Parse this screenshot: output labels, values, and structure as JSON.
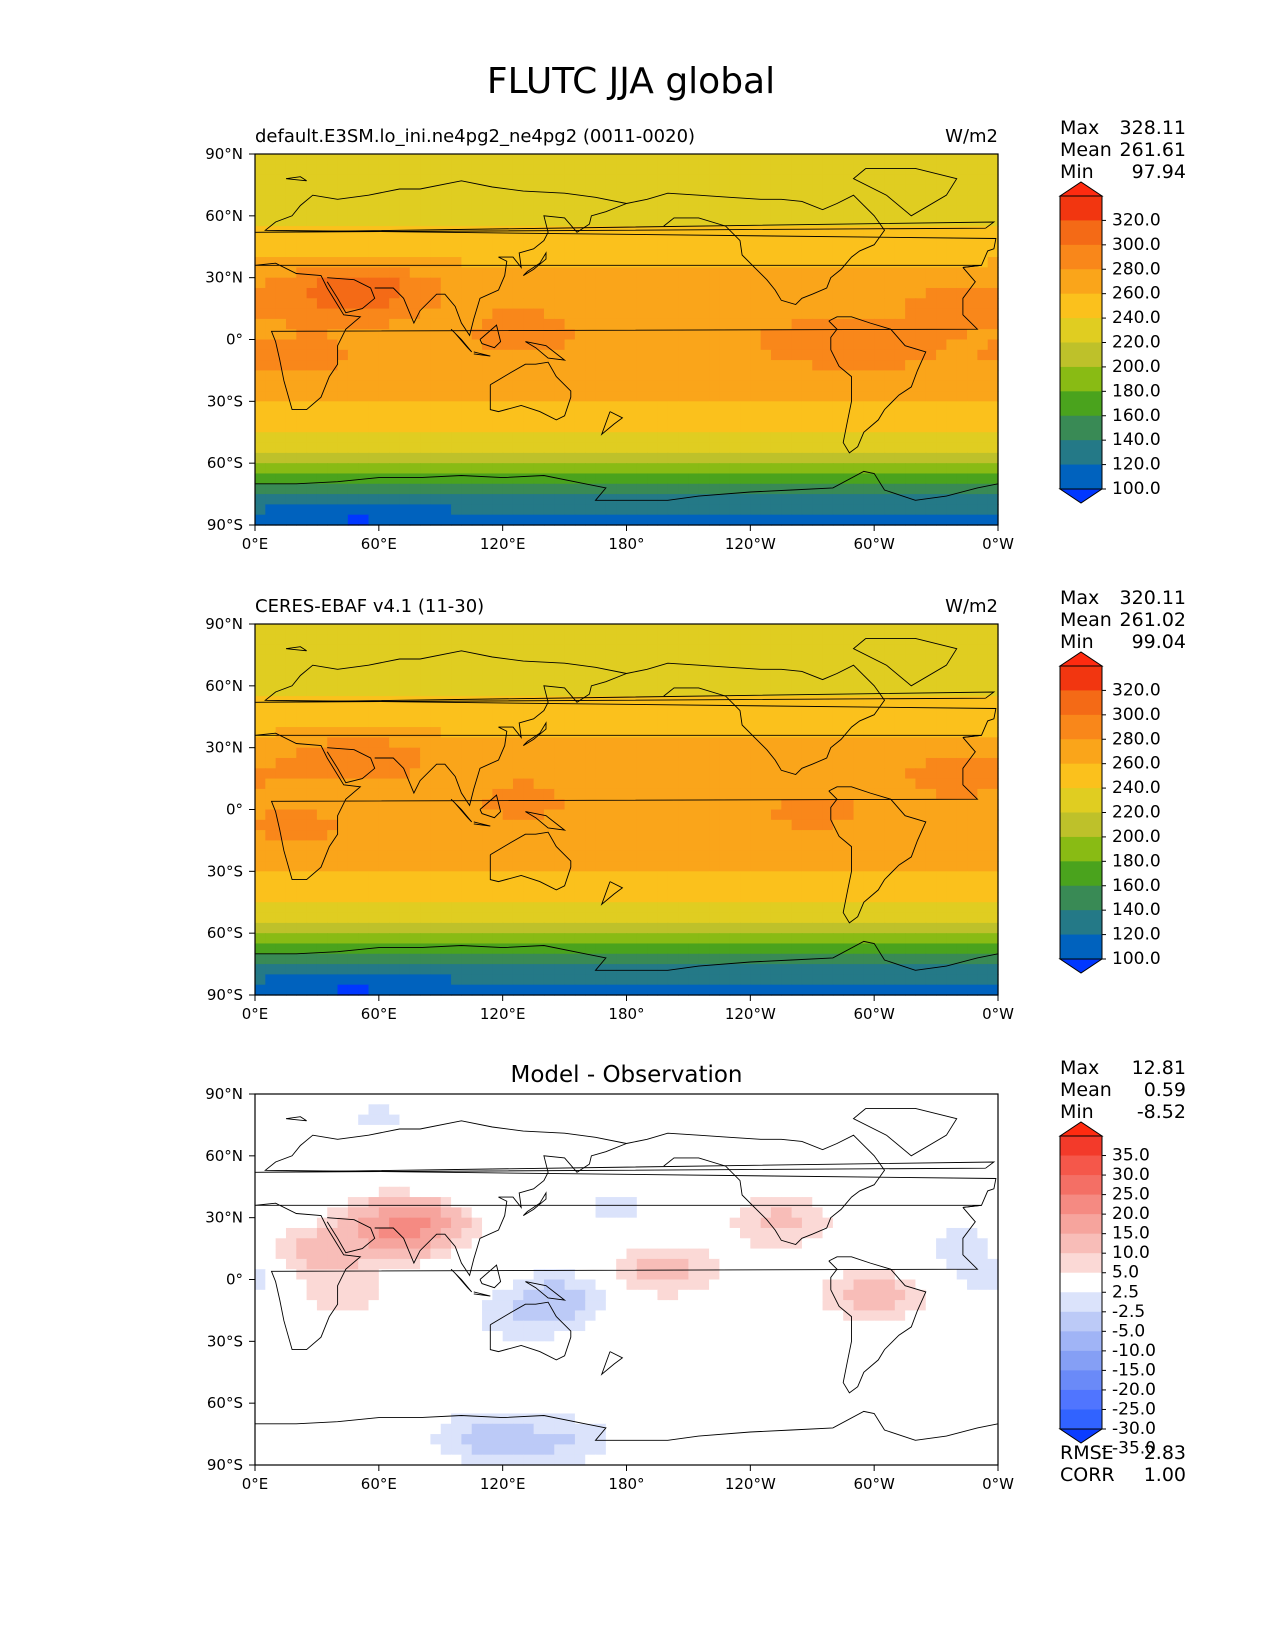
{
  "figure_title": "FLUTC JJA global",
  "x_ticks": [
    "0°E",
    "60°E",
    "120°E",
    "180°",
    "120°W",
    "60°W",
    "0°W"
  ],
  "y_ticks": [
    "90°N",
    "60°N",
    "30°N",
    "0°",
    "30°S",
    "60°S",
    "90°S"
  ],
  "colors": {
    "abs_levels": [
      "#0037ff",
      "#0062be",
      "#247987",
      "#398a55",
      "#4aa31d",
      "#89bb14",
      "#bec12a",
      "#e0cd21",
      "#fbc11c",
      "#faa51a",
      "#f9871a",
      "#f46a16",
      "#f23610",
      "#ff2b10"
    ],
    "diff_levels": [
      "#0b3dff",
      "#3163ff",
      "#5075ff",
      "#6a8af8",
      "#859ff5",
      "#a0b4f6",
      "#bccaf7",
      "#dbe3fb",
      "#ffffff",
      "#fbd9d6",
      "#f8bdb8",
      "#f6a49d",
      "#f58a82",
      "#f46f65",
      "#f5574a",
      "#f33a2a",
      "#ff2b10"
    ],
    "coast": "#000000"
  },
  "chart_data": [
    {
      "type": "heatmap",
      "title": "default.E3SM.lo_ini.ne4pg2_ne4pg2 (0011-0020)",
      "units": "W/m2",
      "xlim": [
        0,
        360
      ],
      "ylim": [
        -90,
        90
      ],
      "stats": [
        {
          "label": "Max",
          "value": "328.11"
        },
        {
          "label": "Mean",
          "value": "261.61"
        },
        {
          "label": "Min",
          "value": "97.94"
        }
      ],
      "colorbar_labels": [
        "320.0",
        "300.0",
        "280.0",
        "260.0",
        "240.0",
        "220.0",
        "200.0",
        "180.0",
        "160.0",
        "140.0",
        "120.0",
        "100.0"
      ],
      "zonal_profile": {
        "lat": [
          -90,
          -80,
          -70,
          -60,
          -50,
          -40,
          -30,
          -20,
          -10,
          0,
          10,
          20,
          30,
          40,
          50,
          60,
          70,
          80,
          90
        ],
        "value": [
          110,
          125,
          155,
          200,
          228,
          246,
          258,
          268,
          275,
          274,
          272,
          275,
          270,
          255,
          245,
          238,
          228,
          222,
          220
        ]
      },
      "features": [
        {
          "lon": 50,
          "lat": 27,
          "value": 300
        },
        {
          "lon": 45,
          "lat": 20,
          "value": 295
        },
        {
          "lon": 130,
          "lat": 5,
          "value": 285
        },
        {
          "lon": 270,
          "lat": 0,
          "value": 285
        },
        {
          "lon": 340,
          "lat": 15,
          "value": 285
        },
        {
          "lon": 20,
          "lat": -10,
          "value": 285
        },
        {
          "lon": 300,
          "lat": -5,
          "value": 285
        },
        {
          "lon": 50,
          "lat": -87,
          "value": 100
        }
      ]
    },
    {
      "type": "heatmap",
      "title": "CERES-EBAF v4.1 (11-30)",
      "units": "W/m2",
      "xlim": [
        0,
        360
      ],
      "ylim": [
        -90,
        90
      ],
      "stats": [
        {
          "label": "Max",
          "value": "320.11"
        },
        {
          "label": "Mean",
          "value": "261.02"
        },
        {
          "label": "Min",
          "value": "99.04"
        }
      ],
      "colorbar_labels": [
        "320.0",
        "300.0",
        "280.0",
        "260.0",
        "240.0",
        "220.0",
        "200.0",
        "180.0",
        "160.0",
        "140.0",
        "120.0",
        "100.0"
      ],
      "zonal_profile": {
        "lat": [
          -90,
          -80,
          -70,
          -60,
          -50,
          -40,
          -30,
          -20,
          -10,
          0,
          10,
          20,
          30,
          40,
          50,
          60,
          70,
          80,
          90
        ],
        "value": [
          112,
          125,
          155,
          200,
          228,
          246,
          258,
          268,
          274,
          273,
          272,
          275,
          268,
          254,
          245,
          238,
          228,
          222,
          220
        ]
      },
      "features": [
        {
          "lon": 50,
          "lat": 28,
          "value": 292
        },
        {
          "lon": 130,
          "lat": 5,
          "value": 283
        },
        {
          "lon": 270,
          "lat": 0,
          "value": 283
        },
        {
          "lon": 340,
          "lat": 15,
          "value": 285
        },
        {
          "lon": 20,
          "lat": -10,
          "value": 284
        },
        {
          "lon": 48,
          "lat": -87,
          "value": 100
        }
      ]
    },
    {
      "type": "heatmap",
      "title": "Model - Observation",
      "units": "",
      "xlim": [
        0,
        360
      ],
      "ylim": [
        -90,
        90
      ],
      "stats": [
        {
          "label": "Max",
          "value": "12.81"
        },
        {
          "label": "Mean",
          "value": "0.59"
        },
        {
          "label": "Min",
          "value": "-8.52"
        }
      ],
      "extra_stats": [
        {
          "label": "RMSE",
          "value": "2.83"
        },
        {
          "label": "CORR",
          "value": "1.00"
        }
      ],
      "colorbar_labels": [
        "35.0",
        "30.0",
        "25.0",
        "20.0",
        "15.0",
        "10.0",
        "5.0",
        "2.5",
        "-2.5",
        "-5.0",
        "-10.0",
        "-15.0",
        "-20.0",
        "-25.0",
        "-30.0",
        "-35.0"
      ],
      "features": [
        {
          "lon": 65,
          "lat": 22,
          "value": 8
        },
        {
          "lon": 78,
          "lat": 28,
          "value": 12
        },
        {
          "lon": 25,
          "lat": 12,
          "value": 7
        },
        {
          "lon": 40,
          "lat": -8,
          "value": 4
        },
        {
          "lon": 198,
          "lat": 5,
          "value": 7
        },
        {
          "lon": 255,
          "lat": 28,
          "value": 6
        },
        {
          "lon": 300,
          "lat": -8,
          "value": 7
        },
        {
          "lon": 148,
          "lat": -8,
          "value": -6
        },
        {
          "lon": 130,
          "lat": -20,
          "value": -4
        },
        {
          "lon": 110,
          "lat": -77,
          "value": -6
        },
        {
          "lon": 150,
          "lat": -78,
          "value": -5
        },
        {
          "lon": 345,
          "lat": 15,
          "value": -4
        },
        {
          "lon": 5,
          "lat": 0,
          "value": -4
        },
        {
          "lon": 100,
          "lat": 45,
          "value": -3
        },
        {
          "lon": 175,
          "lat": 35,
          "value": -3
        },
        {
          "lon": 60,
          "lat": 78,
          "value": -3
        }
      ]
    }
  ]
}
